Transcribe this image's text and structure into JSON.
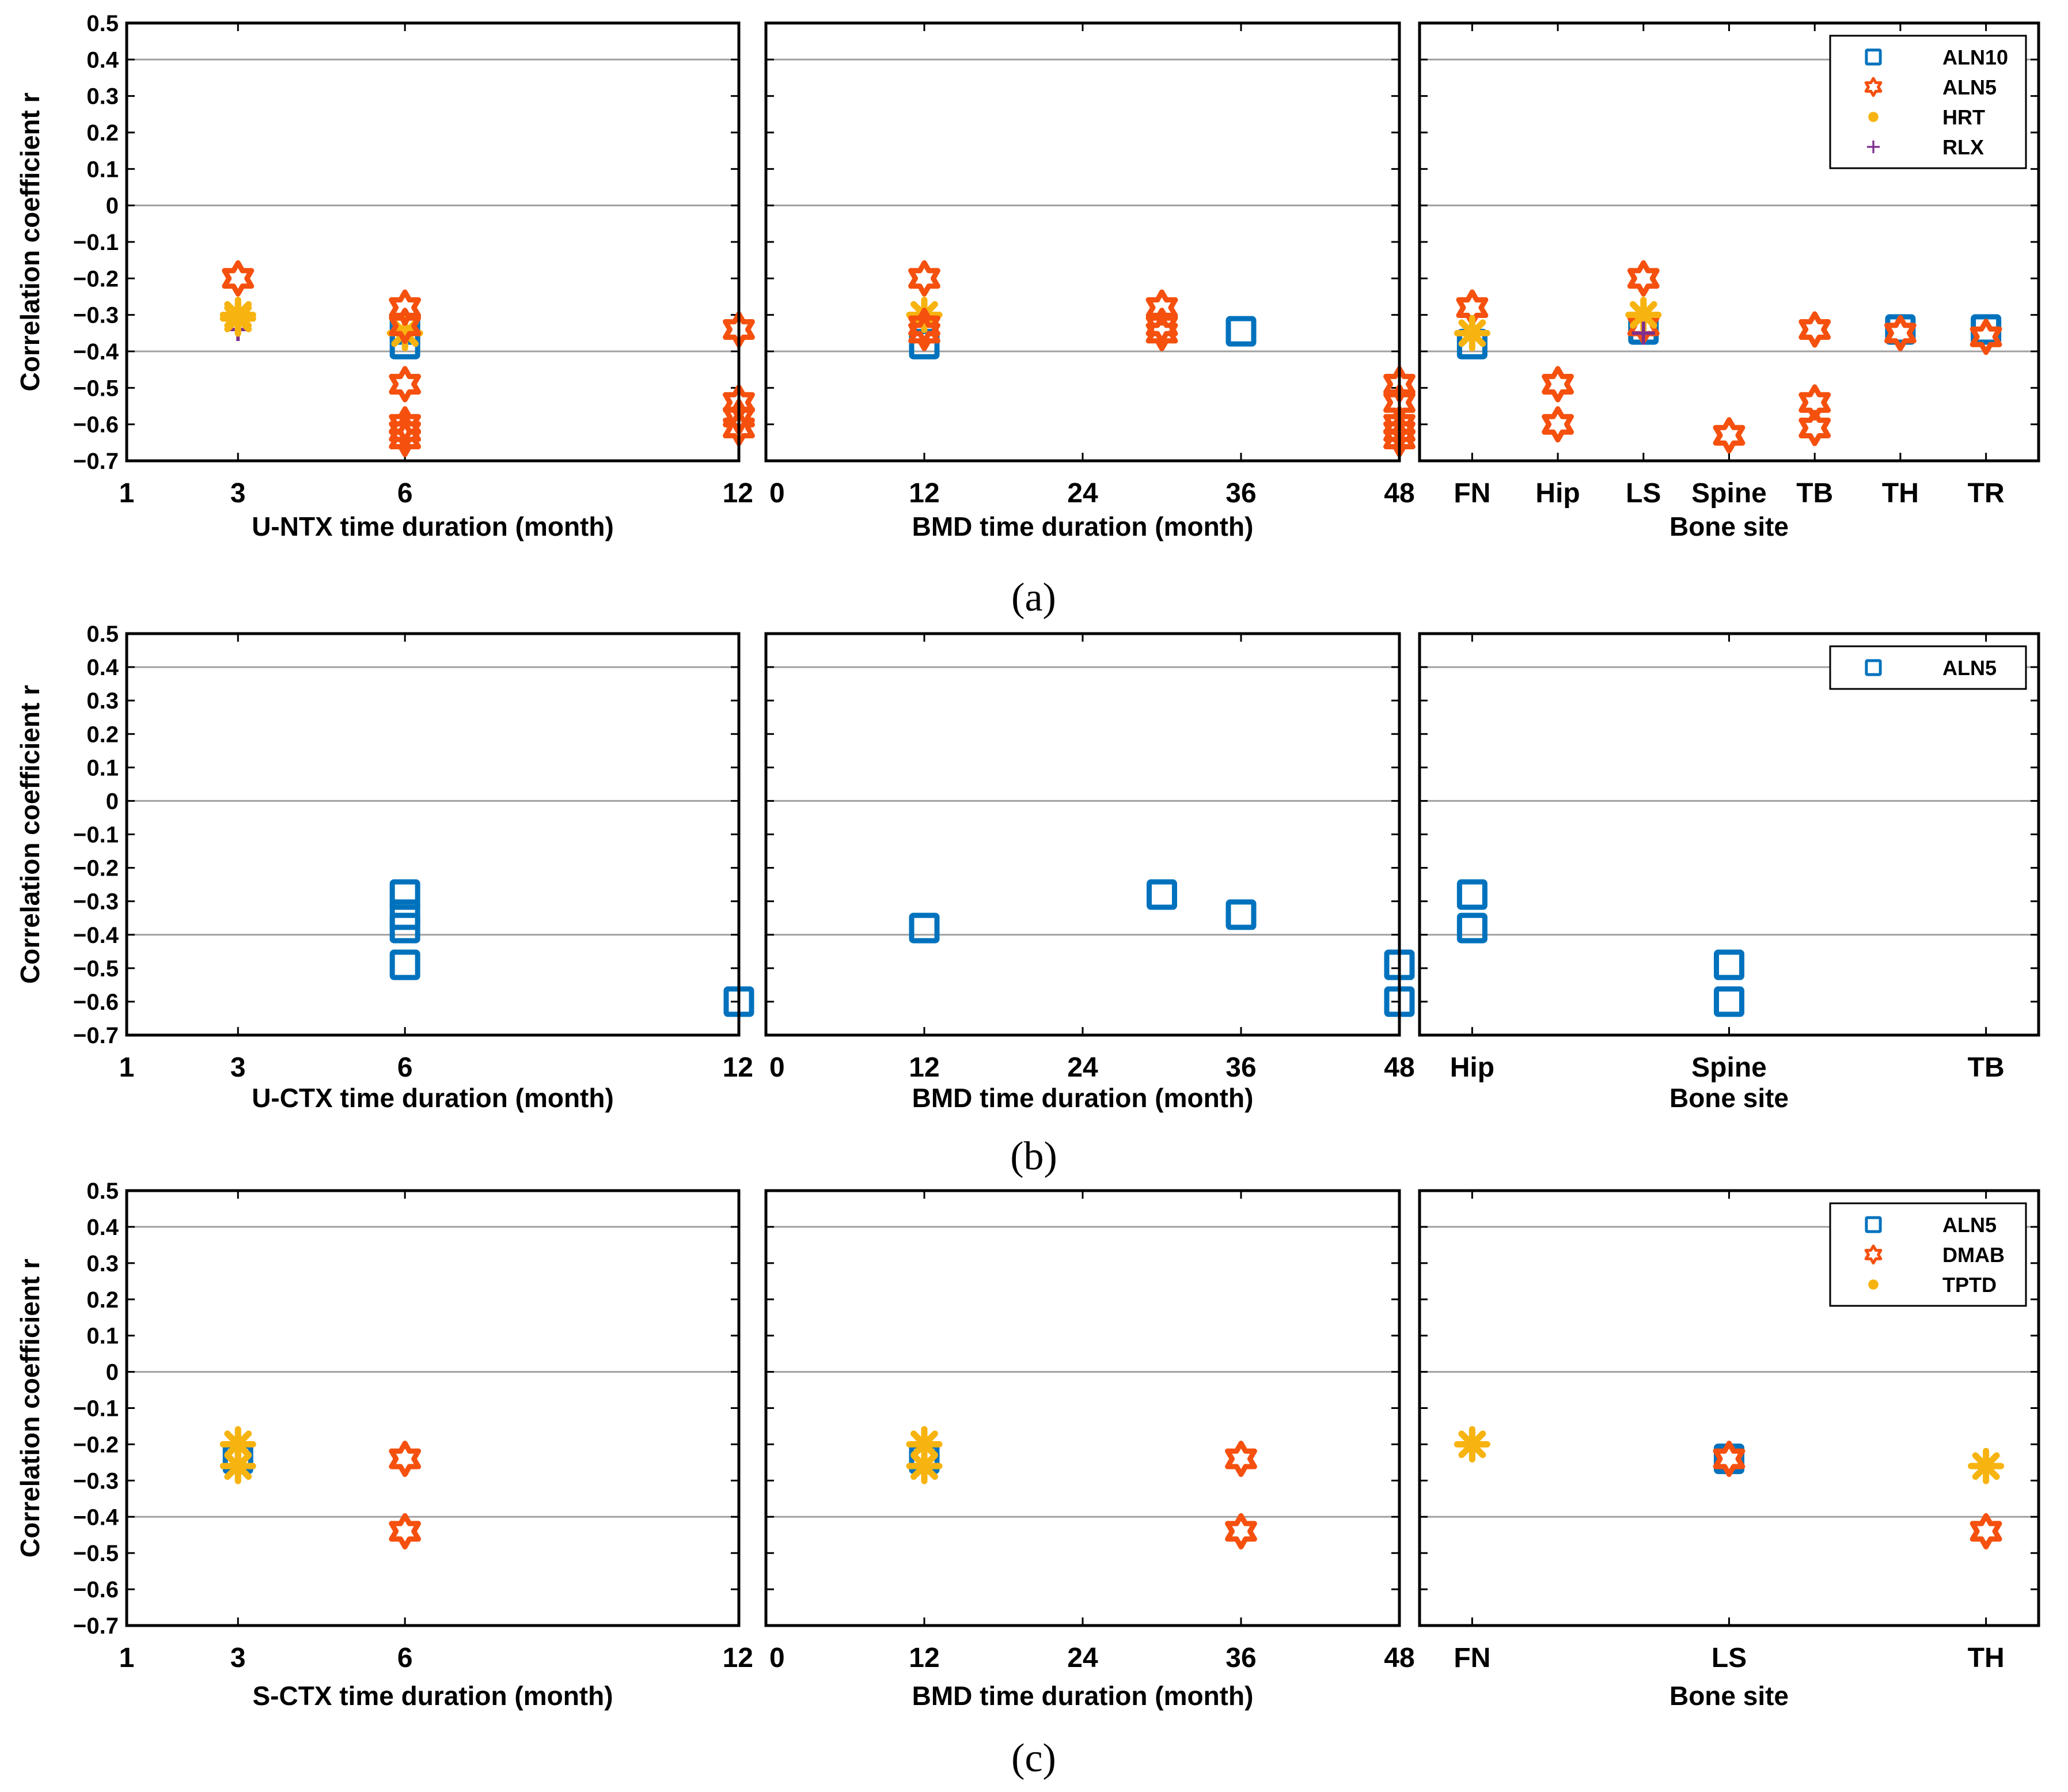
{
  "colors": {
    "ALN10": "#0072bd",
    "ALN5_blue": "#0072bd",
    "ALN5_orange": "#f5500e",
    "DMAB": "#f5500e",
    "HRT": "#f7b30f",
    "TPTD": "#f7b30f",
    "RLX": "#7e2f8e",
    "grid": "#a0a0a0"
  },
  "y_axis": {
    "label": "Correlation coefficient r",
    "range": [
      -0.7,
      0.5
    ],
    "ticks": [
      0.5,
      0.4,
      0.3,
      0.2,
      0.1,
      0,
      -0.1,
      -0.2,
      -0.3,
      -0.4,
      -0.5,
      -0.6,
      -0.7
    ],
    "tick_labels": [
      "0.5",
      "0.4",
      "0.3",
      "0.2",
      "0.1",
      "0",
      "−0.1",
      "−0.2",
      "−0.3",
      "−0.4",
      "−0.5",
      "−0.6",
      "−0.7"
    ],
    "gridlines": [
      0.4,
      0,
      -0.4
    ]
  },
  "chart_data": [
    {
      "panel": "a",
      "caption": "(a)",
      "subplots": [
        {
          "type": "scatter",
          "xlabel": "U-NTX time duration (month)",
          "xaxis": "numeric",
          "xlim": [
            1,
            12
          ],
          "xticks": [
            1,
            3,
            6,
            12
          ],
          "series": [
            {
              "name": "RLX",
              "marker": "plus",
              "points": [
                [
                  3,
                  -0.34
                ]
              ]
            },
            {
              "name": "ALN10",
              "marker": "square",
              "points": [
                [
                  6,
                  -0.38
                ],
                [
                  6,
                  -0.34
                ]
              ]
            },
            {
              "name": "HRT",
              "marker": "asterisk",
              "points": [
                [
                  3,
                  -0.3
                ],
                [
                  3,
                  -0.31
                ],
                [
                  6,
                  -0.35
                ]
              ]
            },
            {
              "name": "ALN5",
              "marker": "hexagram",
              "points": [
                [
                  3,
                  -0.2
                ],
                [
                  6,
                  -0.28
                ],
                [
                  6,
                  -0.33
                ],
                [
                  6,
                  -0.49
                ],
                [
                  6,
                  -0.6
                ],
                [
                  6,
                  -0.62
                ],
                [
                  6,
                  -0.64
                ],
                [
                  12,
                  -0.34
                ],
                [
                  12,
                  -0.54
                ],
                [
                  12,
                  -0.58
                ],
                [
                  12,
                  -0.61
                ]
              ]
            }
          ]
        },
        {
          "type": "scatter",
          "xlabel": "BMD time duration (month)",
          "xaxis": "numeric",
          "xlim": [
            0,
            48
          ],
          "xticks": [
            0,
            12,
            24,
            36,
            48
          ],
          "series": [
            {
              "name": "ALN10",
              "marker": "square",
              "points": [
                [
                  12,
                  -0.38
                ],
                [
                  36,
                  -0.345
                ]
              ]
            },
            {
              "name": "HRT",
              "marker": "asterisk",
              "points": [
                [
                  12,
                  -0.3
                ]
              ]
            },
            {
              "name": "ALN5",
              "marker": "hexagram",
              "points": [
                [
                  12,
                  -0.2
                ],
                [
                  12,
                  -0.33
                ],
                [
                  12,
                  -0.35
                ],
                [
                  30,
                  -0.28
                ],
                [
                  30,
                  -0.33
                ],
                [
                  30,
                  -0.35
                ],
                [
                  48,
                  -0.49
                ],
                [
                  48,
                  -0.54
                ],
                [
                  48,
                  -0.6
                ],
                [
                  48,
                  -0.62
                ],
                [
                  48,
                  -0.64
                ]
              ]
            }
          ]
        },
        {
          "type": "scatter",
          "xlabel": "Bone site",
          "xaxis": "category",
          "categories": [
            "FN",
            "Hip",
            "LS",
            "Spine",
            "TB",
            "TH",
            "TR"
          ],
          "series": [
            {
              "name": "ALN10",
              "marker": "square",
              "points": [
                [
                  "FN",
                  -0.38
                ],
                [
                  "LS",
                  -0.34
                ],
                [
                  "TH",
                  -0.34
                ],
                [
                  "TR",
                  -0.34
                ]
              ]
            },
            {
              "name": "ALN5",
              "marker": "hexagram",
              "points": [
                [
                  "FN",
                  -0.28
                ],
                [
                  "Hip",
                  -0.49
                ],
                [
                  "Hip",
                  -0.6
                ],
                [
                  "LS",
                  -0.2
                ],
                [
                  "LS",
                  -0.33
                ],
                [
                  "Spine",
                  -0.63
                ],
                [
                  "TB",
                  -0.34
                ],
                [
                  "TB",
                  -0.54
                ],
                [
                  "TB",
                  -0.61
                ],
                [
                  "TH",
                  -0.35
                ],
                [
                  "TR",
                  -0.36
                ]
              ]
            },
            {
              "name": "HRT",
              "marker": "asterisk",
              "points": [
                [
                  "FN",
                  -0.35
                ],
                [
                  "LS",
                  -0.3
                ]
              ]
            },
            {
              "name": "RLX",
              "marker": "plus",
              "points": [
                [
                  "LS",
                  -0.35
                ]
              ]
            }
          ],
          "legend": {
            "placement": "top-right",
            "entries": [
              {
                "label": "ALN10",
                "marker": "square",
                "color_key": "ALN10"
              },
              {
                "label": "ALN5",
                "marker": "hexagram",
                "color_key": "ALN5_orange"
              },
              {
                "label": "HRT",
                "marker": "circle",
                "color_key": "HRT"
              },
              {
                "label": "RLX",
                "marker": "plus",
                "color_key": "RLX"
              }
            ]
          }
        }
      ]
    },
    {
      "panel": "b",
      "caption": "(b)",
      "subplots": [
        {
          "type": "scatter",
          "xlabel": "U-CTX time duration (month)",
          "xaxis": "numeric",
          "xlim": [
            1,
            12
          ],
          "xticks": [
            1,
            3,
            6,
            12
          ],
          "series": [
            {
              "name": "ALN5",
              "marker": "square",
              "points": [
                [
                  6,
                  -0.28
                ],
                [
                  6,
                  -0.34
                ],
                [
                  6,
                  -0.38
                ],
                [
                  6,
                  -0.49
                ],
                [
                  12,
                  -0.6
                ]
              ]
            }
          ]
        },
        {
          "type": "scatter",
          "xlabel": "BMD time duration (month)",
          "xaxis": "numeric",
          "xlim": [
            0,
            48
          ],
          "xticks": [
            0,
            12,
            24,
            36,
            48
          ],
          "series": [
            {
              "name": "ALN5",
              "marker": "square",
              "points": [
                [
                  12,
                  -0.38
                ],
                [
                  30,
                  -0.28
                ],
                [
                  36,
                  -0.34
                ],
                [
                  48,
                  -0.49
                ],
                [
                  48,
                  -0.6
                ]
              ]
            }
          ]
        },
        {
          "type": "scatter",
          "xlabel": "Bone site",
          "xaxis": "category",
          "categories": [
            "Hip",
            "Spine",
            "TB"
          ],
          "series": [
            {
              "name": "ALN5",
              "marker": "square",
              "points": [
                [
                  "Hip",
                  -0.28
                ],
                [
                  "Hip",
                  -0.38
                ],
                [
                  "Spine",
                  -0.49
                ],
                [
                  "Spine",
                  -0.6
                ]
              ]
            }
          ],
          "legend": {
            "placement": "top-right",
            "entries": [
              {
                "label": "ALN5",
                "marker": "square",
                "color_key": "ALN5_blue"
              }
            ]
          }
        }
      ]
    },
    {
      "panel": "c",
      "caption": "(c)",
      "subplots": [
        {
          "type": "scatter",
          "xlabel": "S-CTX time duration (month)",
          "xaxis": "numeric",
          "xlim": [
            1,
            12
          ],
          "xticks": [
            1,
            3,
            6,
            12
          ],
          "series": [
            {
              "name": "ALN5",
              "marker": "square",
              "points": [
                [
                  3,
                  -0.24
                ]
              ]
            },
            {
              "name": "TPTD",
              "marker": "asterisk",
              "points": [
                [
                  3,
                  -0.2
                ],
                [
                  3,
                  -0.26
                ]
              ]
            },
            {
              "name": "DMAB",
              "marker": "hexagram",
              "points": [
                [
                  6,
                  -0.24
                ],
                [
                  6,
                  -0.44
                ]
              ]
            }
          ]
        },
        {
          "type": "scatter",
          "xlabel": "BMD time duration (month)",
          "xaxis": "numeric",
          "xlim": [
            0,
            48
          ],
          "xticks": [
            0,
            12,
            24,
            36,
            48
          ],
          "series": [
            {
              "name": "ALN5",
              "marker": "square",
              "points": [
                [
                  12,
                  -0.24
                ]
              ]
            },
            {
              "name": "TPTD",
              "marker": "asterisk",
              "points": [
                [
                  12,
                  -0.2
                ],
                [
                  12,
                  -0.26
                ]
              ]
            },
            {
              "name": "DMAB",
              "marker": "hexagram",
              "points": [
                [
                  36,
                  -0.24
                ],
                [
                  36,
                  -0.44
                ]
              ]
            }
          ]
        },
        {
          "type": "scatter",
          "xlabel": "Bone site",
          "xaxis": "category",
          "categories": [
            "FN",
            "LS",
            "TH"
          ],
          "series": [
            {
              "name": "TPTD",
              "marker": "asterisk",
              "points": [
                [
                  "FN",
                  -0.2
                ],
                [
                  "TH",
                  -0.26
                ]
              ]
            },
            {
              "name": "ALN5",
              "marker": "square",
              "points": [
                [
                  "LS",
                  -0.24
                ]
              ]
            },
            {
              "name": "DMAB",
              "marker": "hexagram",
              "points": [
                [
                  "LS",
                  -0.24
                ],
                [
                  "TH",
                  -0.44
                ]
              ]
            }
          ],
          "legend": {
            "placement": "top-right",
            "entries": [
              {
                "label": "ALN5",
                "marker": "square",
                "color_key": "ALN5_blue"
              },
              {
                "label": "DMAB",
                "marker": "hexagram",
                "color_key": "DMAB"
              },
              {
                "label": "TPTD",
                "marker": "circle",
                "color_key": "TPTD"
              }
            ]
          }
        }
      ]
    }
  ]
}
